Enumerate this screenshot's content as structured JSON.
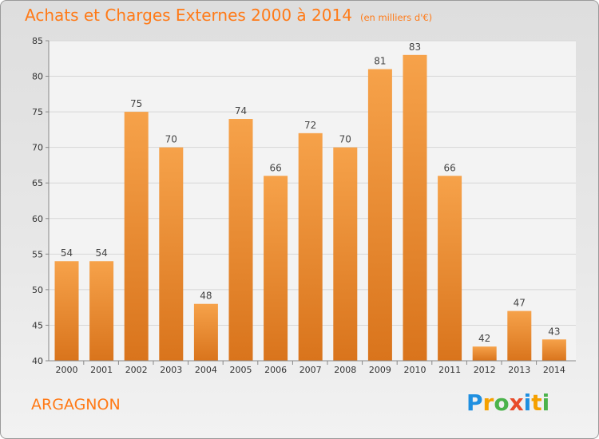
{
  "title": "Achats et Charges Externes 2000 à 2014",
  "subtitle": "(en milliers d'€)",
  "commune": "ARGAGNON",
  "logo": {
    "letters": [
      "P",
      "r",
      "o",
      "x",
      "i",
      "t",
      "i"
    ],
    "colors": [
      "#1f8fe0",
      "#f5a000",
      "#4bb34b",
      "#e84c2b",
      "#1f8fe0",
      "#f5a000",
      "#4bb34b"
    ]
  },
  "colors": {
    "bar_light": "#f6a24a",
    "bar_dark": "#d9741c",
    "title": "#ff7a17"
  },
  "chart_data": {
    "type": "bar",
    "title": "Achats et Charges Externes 2000 à 2014",
    "subtitle": "(en milliers d'€)",
    "categories": [
      "2000",
      "2001",
      "2002",
      "2003",
      "2004",
      "2005",
      "2006",
      "2007",
      "2008",
      "2009",
      "2010",
      "2011",
      "2012",
      "2013",
      "2014"
    ],
    "values": [
      54,
      54,
      75,
      70,
      48,
      74,
      66,
      72,
      70,
      81,
      83,
      66,
      42,
      47,
      43
    ],
    "ylim": [
      40,
      85
    ],
    "yticks": [
      40,
      45,
      50,
      55,
      60,
      65,
      70,
      75,
      80,
      85
    ],
    "grid": true,
    "xlabel": "",
    "ylabel": ""
  }
}
